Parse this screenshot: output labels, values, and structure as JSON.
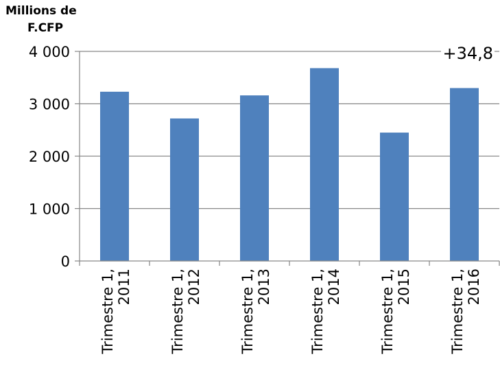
{
  "chart_data": {
    "type": "bar",
    "title": "",
    "ylabel_lines": [
      "Millions de",
      "F.CFP"
    ],
    "xlabel": "",
    "categories": [
      [
        "Trimestre 1,",
        "2011"
      ],
      [
        "Trimestre 1,",
        "2012"
      ],
      [
        "Trimestre 1,",
        "2013"
      ],
      [
        "Trimestre 1,",
        "2014"
      ],
      [
        "Trimestre 1,",
        "2015"
      ],
      [
        "Trimestre 1,",
        "2016"
      ]
    ],
    "values": [
      3230,
      2720,
      3160,
      3680,
      2450,
      3300
    ],
    "ylim": [
      0,
      4000
    ],
    "yticks": [
      0,
      1000,
      2000,
      3000,
      4000
    ],
    "ytick_labels": [
      "0",
      "1 000",
      "2 000",
      "3 000",
      "4 000"
    ],
    "grid": true,
    "legend": "none",
    "annotation": "+34,8",
    "bar_color": "#4f81bd",
    "grid_color": "#868686"
  }
}
